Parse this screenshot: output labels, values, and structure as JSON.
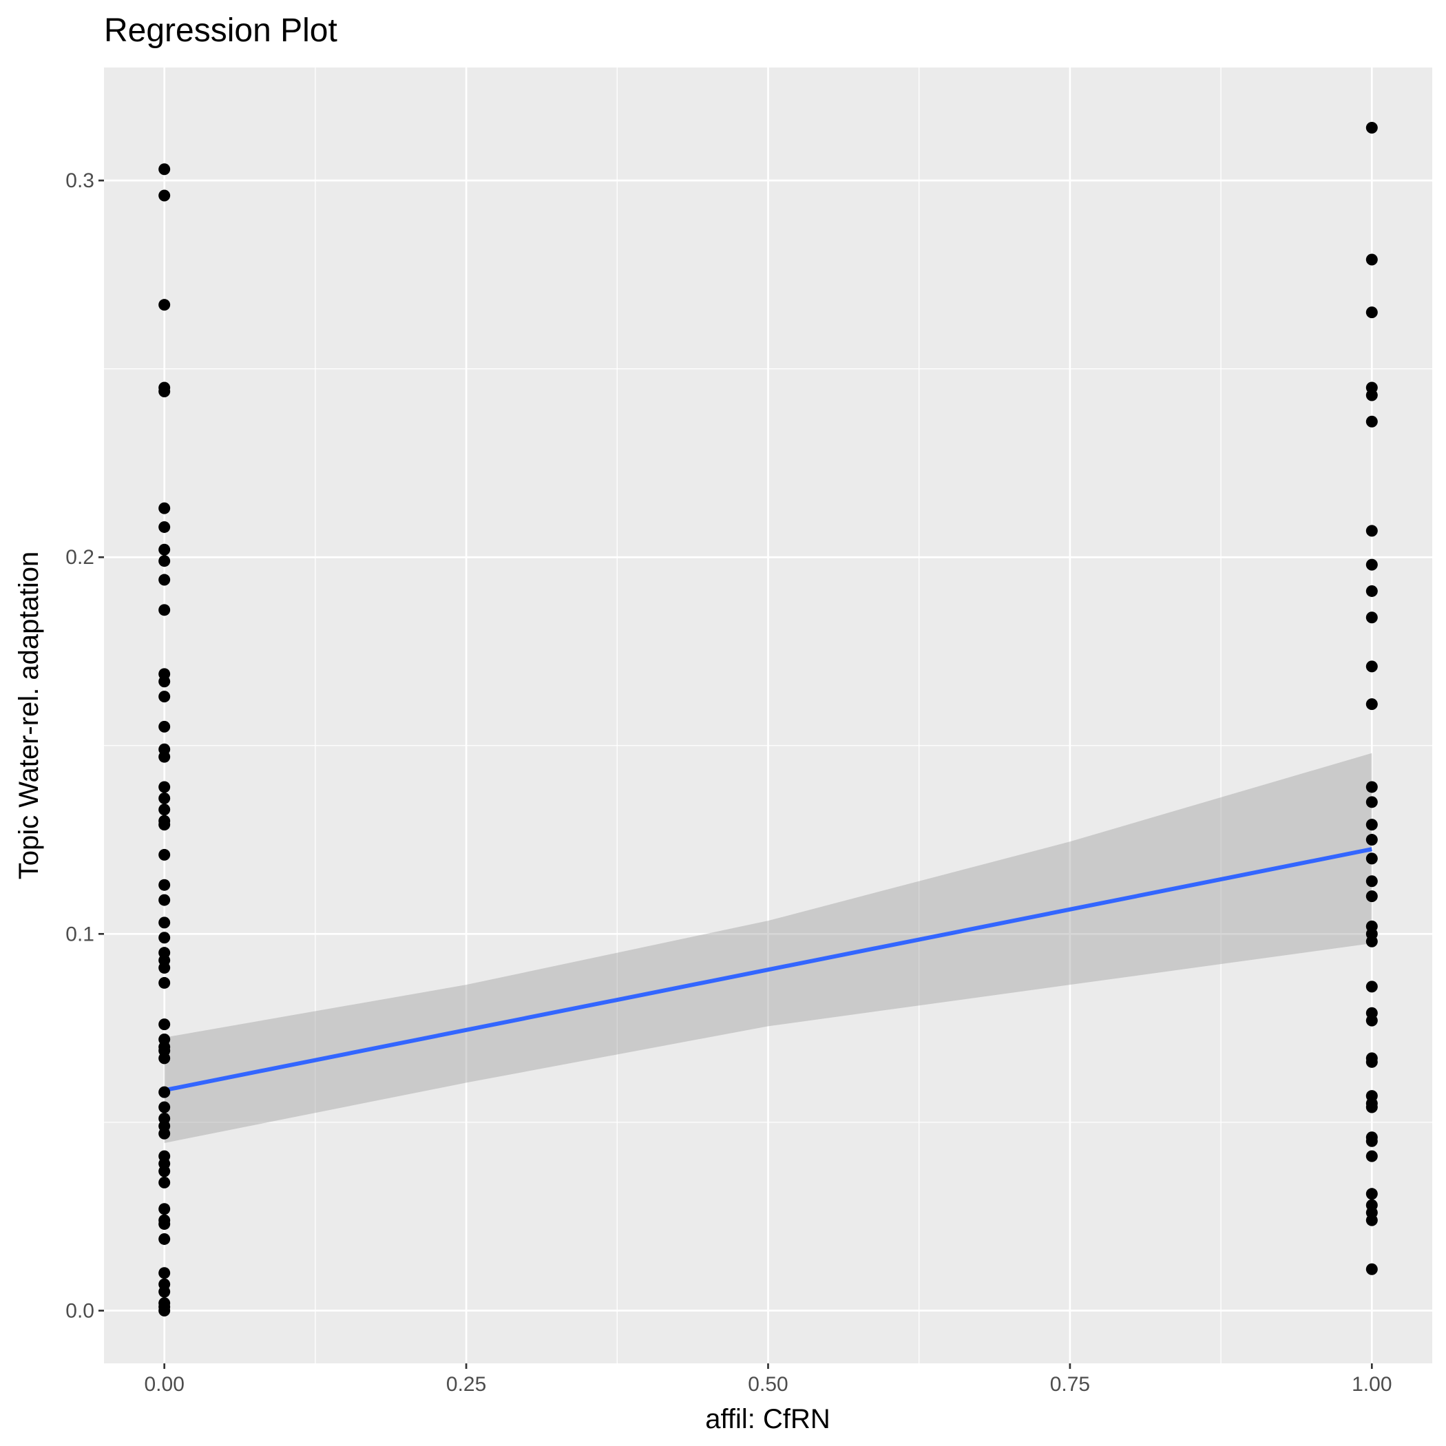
{
  "chart_data": {
    "type": "scatter",
    "title": "Regression Plot",
    "xlabel": "affil: CfRN",
    "ylabel": "Topic Water-rel. adaptation",
    "xlim": [
      -0.05,
      1.05
    ],
    "ylim": [
      -0.014,
      0.33
    ],
    "x_ticks": [
      0.0,
      0.25,
      0.5,
      0.75,
      1.0
    ],
    "x_tick_labels": [
      "0.00",
      "0.25",
      "0.50",
      "0.75",
      "1.00"
    ],
    "y_ticks": [
      0.0,
      0.1,
      0.2,
      0.3
    ],
    "y_tick_labels": [
      "0.0",
      "0.1",
      "0.2",
      "0.3"
    ],
    "grid": true,
    "colors": {
      "panel": "#ebebeb",
      "grid": "#ffffff",
      "points": "#000000",
      "line": "#3366ff",
      "band": "#c4c4c4"
    },
    "points": [
      {
        "x": 0,
        "y": 0.303
      },
      {
        "x": 0,
        "y": 0.296
      },
      {
        "x": 0,
        "y": 0.267
      },
      {
        "x": 0,
        "y": 0.245
      },
      {
        "x": 0,
        "y": 0.244
      },
      {
        "x": 0,
        "y": 0.213
      },
      {
        "x": 0,
        "y": 0.208
      },
      {
        "x": 0,
        "y": 0.202
      },
      {
        "x": 0,
        "y": 0.199
      },
      {
        "x": 0,
        "y": 0.194
      },
      {
        "x": 0,
        "y": 0.186
      },
      {
        "x": 0,
        "y": 0.169
      },
      {
        "x": 0,
        "y": 0.167
      },
      {
        "x": 0,
        "y": 0.163
      },
      {
        "x": 0,
        "y": 0.155
      },
      {
        "x": 0,
        "y": 0.149
      },
      {
        "x": 0,
        "y": 0.147
      },
      {
        "x": 0,
        "y": 0.139
      },
      {
        "x": 0,
        "y": 0.136
      },
      {
        "x": 0,
        "y": 0.133
      },
      {
        "x": 0,
        "y": 0.13
      },
      {
        "x": 0,
        "y": 0.129
      },
      {
        "x": 0,
        "y": 0.121
      },
      {
        "x": 0,
        "y": 0.113
      },
      {
        "x": 0,
        "y": 0.109
      },
      {
        "x": 0,
        "y": 0.103
      },
      {
        "x": 0,
        "y": 0.099
      },
      {
        "x": 0,
        "y": 0.095
      },
      {
        "x": 0,
        "y": 0.093
      },
      {
        "x": 0,
        "y": 0.091
      },
      {
        "x": 0,
        "y": 0.087
      },
      {
        "x": 0,
        "y": 0.076
      },
      {
        "x": 0,
        "y": 0.072
      },
      {
        "x": 0,
        "y": 0.07
      },
      {
        "x": 0,
        "y": 0.069
      },
      {
        "x": 0,
        "y": 0.067
      },
      {
        "x": 0,
        "y": 0.058
      },
      {
        "x": 0,
        "y": 0.054
      },
      {
        "x": 0,
        "y": 0.051
      },
      {
        "x": 0,
        "y": 0.049
      },
      {
        "x": 0,
        "y": 0.047
      },
      {
        "x": 0,
        "y": 0.041
      },
      {
        "x": 0,
        "y": 0.039
      },
      {
        "x": 0,
        "y": 0.037
      },
      {
        "x": 0,
        "y": 0.034
      },
      {
        "x": 0,
        "y": 0.027
      },
      {
        "x": 0,
        "y": 0.024
      },
      {
        "x": 0,
        "y": 0.023
      },
      {
        "x": 0,
        "y": 0.019
      },
      {
        "x": 0,
        "y": 0.01
      },
      {
        "x": 0,
        "y": 0.007
      },
      {
        "x": 0,
        "y": 0.005
      },
      {
        "x": 0,
        "y": 0.002
      },
      {
        "x": 0,
        "y": 0.001
      },
      {
        "x": 0,
        "y": 0.0
      },
      {
        "x": 1,
        "y": 0.314
      },
      {
        "x": 1,
        "y": 0.279
      },
      {
        "x": 1,
        "y": 0.265
      },
      {
        "x": 1,
        "y": 0.245
      },
      {
        "x": 1,
        "y": 0.243
      },
      {
        "x": 1,
        "y": 0.236
      },
      {
        "x": 1,
        "y": 0.207
      },
      {
        "x": 1,
        "y": 0.198
      },
      {
        "x": 1,
        "y": 0.191
      },
      {
        "x": 1,
        "y": 0.184
      },
      {
        "x": 1,
        "y": 0.171
      },
      {
        "x": 1,
        "y": 0.161
      },
      {
        "x": 1,
        "y": 0.139
      },
      {
        "x": 1,
        "y": 0.135
      },
      {
        "x": 1,
        "y": 0.129
      },
      {
        "x": 1,
        "y": 0.125
      },
      {
        "x": 1,
        "y": 0.12
      },
      {
        "x": 1,
        "y": 0.114
      },
      {
        "x": 1,
        "y": 0.11
      },
      {
        "x": 1,
        "y": 0.102
      },
      {
        "x": 1,
        "y": 0.1
      },
      {
        "x": 1,
        "y": 0.098
      },
      {
        "x": 1,
        "y": 0.086
      },
      {
        "x": 1,
        "y": 0.079
      },
      {
        "x": 1,
        "y": 0.077
      },
      {
        "x": 1,
        "y": 0.067
      },
      {
        "x": 1,
        "y": 0.066
      },
      {
        "x": 1,
        "y": 0.057
      },
      {
        "x": 1,
        "y": 0.055
      },
      {
        "x": 1,
        "y": 0.054
      },
      {
        "x": 1,
        "y": 0.046
      },
      {
        "x": 1,
        "y": 0.045
      },
      {
        "x": 1,
        "y": 0.041
      },
      {
        "x": 1,
        "y": 0.031
      },
      {
        "x": 1,
        "y": 0.028
      },
      {
        "x": 1,
        "y": 0.026
      },
      {
        "x": 1,
        "y": 0.024
      },
      {
        "x": 1,
        "y": 0.011
      }
    ],
    "regression_line": {
      "x": [
        0,
        1
      ],
      "y": [
        0.0585,
        0.1225
      ]
    },
    "confidence_band": {
      "x": [
        0,
        0.25,
        0.5,
        0.75,
        1
      ],
      "upper": [
        0.0725,
        0.0865,
        0.1035,
        0.1245,
        0.148
      ],
      "lower": [
        0.0445,
        0.0605,
        0.0755,
        0.0865,
        0.0975
      ]
    }
  }
}
